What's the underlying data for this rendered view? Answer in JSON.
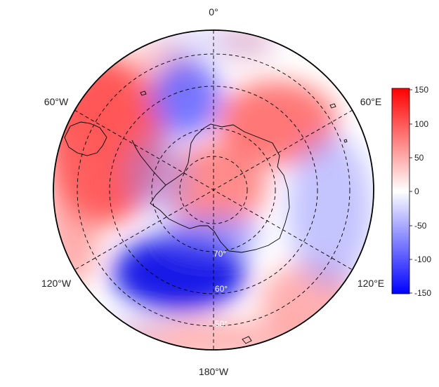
{
  "map": {
    "projection": "south-polar-stereographic",
    "longitude_labels": {
      "top": "0°",
      "upper_left": "60°W",
      "upper_right": "60°E",
      "lower_left": "120°W",
      "lower_right": "120°E",
      "bottom": "180°W"
    },
    "latitude_labels": [
      "70°",
      "60°",
      "50°"
    ],
    "colorbar": {
      "ticks": [
        "150",
        "100",
        "50",
        "0",
        "-50",
        "-100",
        "-150"
      ],
      "min": -150,
      "max": 150,
      "colors": {
        "max": "#ff0000",
        "mid": "#ffffff",
        "min": "#0000ff"
      }
    },
    "colors": {
      "coastline": "#000000",
      "graticule": "#000000",
      "frame": "#000000"
    }
  }
}
